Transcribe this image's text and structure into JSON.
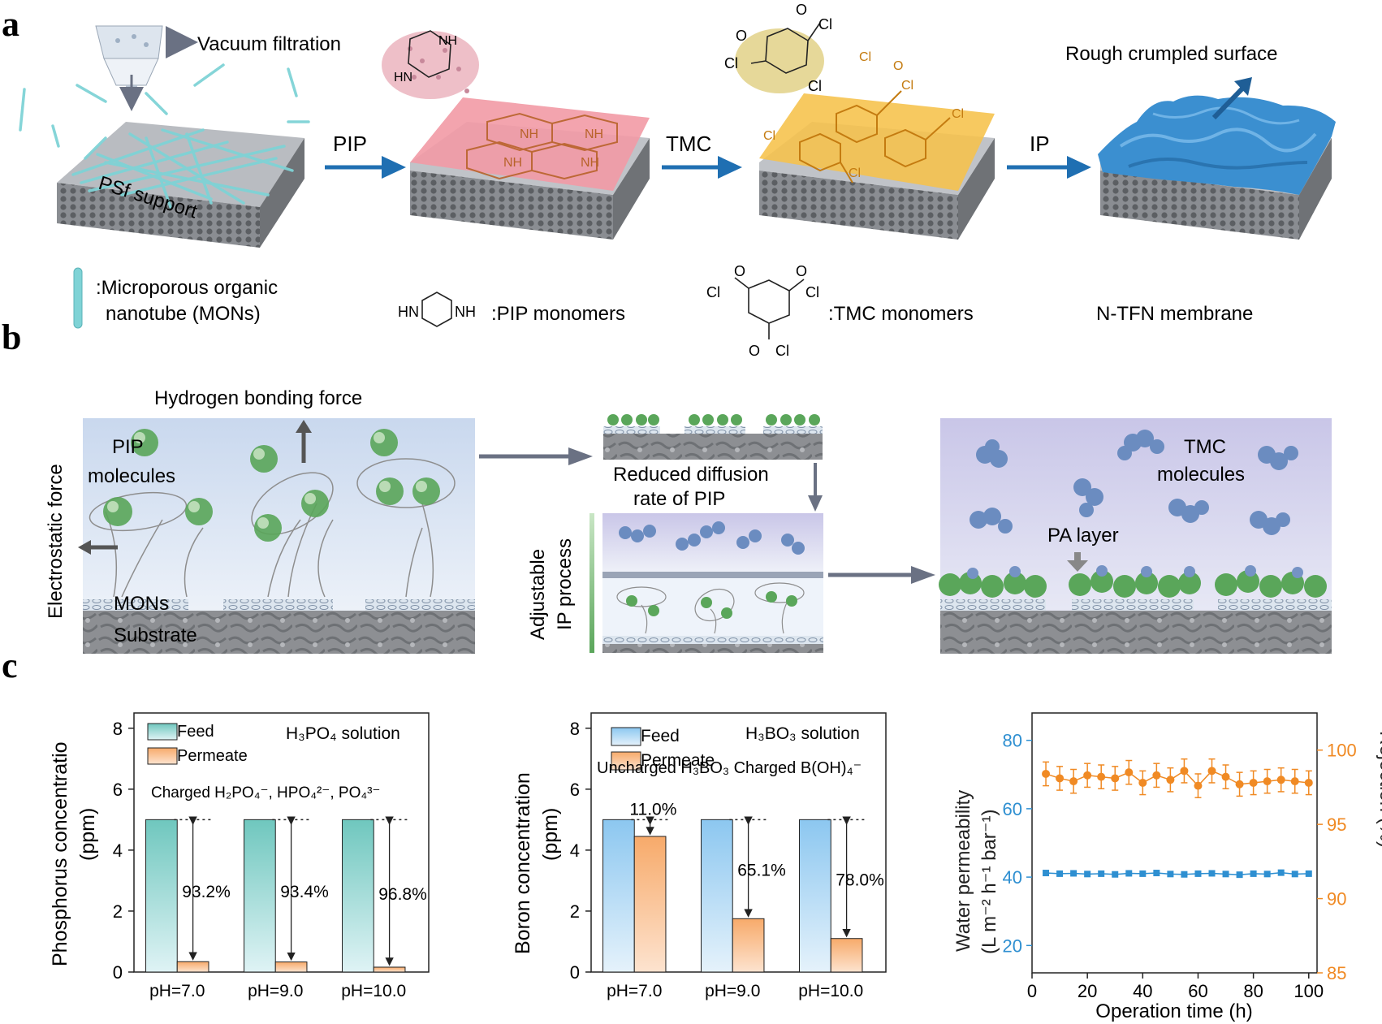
{
  "panel_a": {
    "label": "a",
    "vacuum": "Vacuum filtration",
    "support": "PSf support",
    "step1": "PIP",
    "step2": "TMC",
    "step3": "IP",
    "rough": "Rough crumpled surface",
    "pip_nh": "NH",
    "pip_hn": "HN",
    "cl": "Cl",
    "o": "O",
    "legend_mons_1": ":Microporous organic",
    "legend_mons_2": "nanotube (MONs)",
    "legend_pip": ":PIP monomers",
    "legend_tmc": ":TMC monomers",
    "legend_membrane": "N-TFN membrane",
    "colors": {
      "mons": "#7fd3d6",
      "pip_layer": "#f29aa5",
      "tmc_layer": "#f6c24a",
      "membrane": "#3b8fd0",
      "arrow": "#1f6fb2"
    }
  },
  "panel_b": {
    "label": "b",
    "hbond": "Hydrogen bonding force",
    "electrostatic": "Electrostatic force",
    "pip_1": "PIP",
    "pip_2": "molecules",
    "mons": "MONs",
    "substrate": "Substrate",
    "reduced_1": "Reduced diffusion",
    "reduced_2": "rate of PIP",
    "adjustable_1": "Adjustable",
    "adjustable_2": "IP process",
    "tmc_1": "TMC",
    "tmc_2": "molecules",
    "pa": "PA layer"
  },
  "panel_c": {
    "label": "c",
    "chart1_ylabel": "Phosphorus concentratio",
    "chart1_ylabel2": "(ppm)",
    "chart1_legend": [
      "Feed",
      "Permeate"
    ],
    "chart1_solution": "H₃PO₄ solution",
    "chart1_species": "Charged H₂PO₄⁻, HPO₄²⁻, PO₄³⁻",
    "chart2_ylabel": "Boron concentration",
    "chart2_ylabel2": "(ppm)",
    "chart2_legend": [
      "Feed",
      "Permeate"
    ],
    "chart2_solution": "H₃BO₃ solution",
    "chart2_species": "Uncharged H₃BO₃ Charged B(OH)₄⁻",
    "chart3_ylabel_left": "Water permeability",
    "chart3_ylabel_left2": "(L m⁻² h⁻¹ bar⁻¹)",
    "chart3_ylabel_right": "Rejection (%)",
    "chart3_xlabel": "Operation time (h)"
  },
  "chart_data": [
    {
      "type": "bar",
      "categories": [
        "pH=7.0",
        "pH=9.0",
        "pH=10.0"
      ],
      "series": [
        {
          "name": "Feed",
          "values": [
            5.0,
            5.0,
            5.0
          ],
          "color": "#7fcfc8"
        },
        {
          "name": "Permeate",
          "values": [
            0.34,
            0.33,
            0.16
          ],
          "color": "#f7b27a"
        }
      ],
      "annotations": [
        "93.2%",
        "93.4%",
        "96.8%"
      ],
      "ylim": [
        0,
        8.5
      ],
      "yticks": [
        0,
        2,
        4,
        6,
        8
      ]
    },
    {
      "type": "bar",
      "categories": [
        "pH=7.0",
        "pH=9.0",
        "pH=10.0"
      ],
      "series": [
        {
          "name": "Feed",
          "values": [
            5.0,
            5.0,
            5.0
          ],
          "color": "#8ec6ee"
        },
        {
          "name": "Permeate",
          "values": [
            4.45,
            1.75,
            1.1
          ],
          "color": "#f7b27a"
        }
      ],
      "annotations": [
        "11.0%",
        "65.1%",
        "78.0%"
      ],
      "ylim": [
        0,
        8.5
      ],
      "yticks": [
        0,
        2,
        4,
        6,
        8
      ]
    },
    {
      "type": "line",
      "x": [
        5,
        10,
        15,
        20,
        25,
        30,
        35,
        40,
        45,
        50,
        55,
        60,
        65,
        70,
        75,
        80,
        85,
        90,
        95,
        100
      ],
      "series": [
        {
          "values": [
            41.2,
            41.0,
            41.1,
            40.9,
            41.0,
            40.8,
            41.1,
            41.0,
            41.2,
            40.9,
            40.8,
            41.0,
            41.1,
            40.9,
            40.7,
            41.0,
            40.9,
            41.3,
            40.9,
            41.0
          ],
          "axis": "left",
          "color": "#2e8fd1"
        },
        {
          "values": [
            98.4,
            98.1,
            97.9,
            98.3,
            98.2,
            98.1,
            98.5,
            97.8,
            98.3,
            98.0,
            98.6,
            97.6,
            98.6,
            98.2,
            97.7,
            97.8,
            97.9,
            98.0,
            97.9,
            97.8
          ],
          "axis": "right",
          "color": "#f08a24",
          "errors": 0.8
        }
      ],
      "xlim": [
        0,
        103
      ],
      "xticks": [
        0,
        20,
        40,
        60,
        80,
        100
      ],
      "ylim_left": [
        12,
        88
      ],
      "yticks_left": [
        20,
        40,
        60,
        80
      ],
      "ylim_right": [
        85,
        102.5
      ],
      "yticks_right": [
        85,
        90,
        95,
        100
      ]
    }
  ]
}
